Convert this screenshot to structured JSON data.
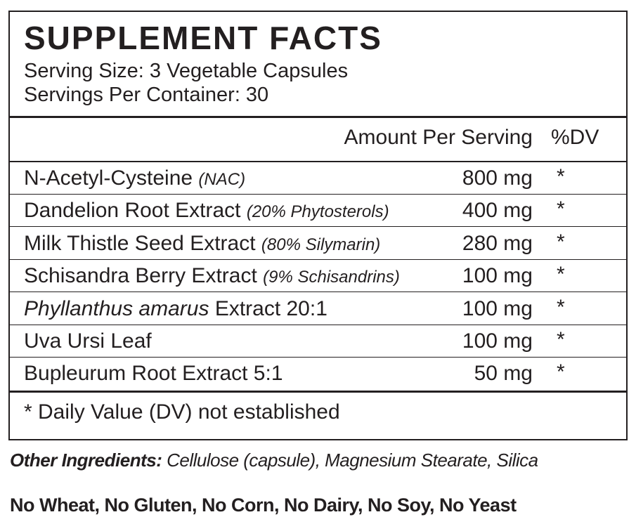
{
  "label": {
    "title": "SUPPLEMENT FACTS",
    "serving_size": "Serving Size: 3 Vegetable Capsules",
    "servings_per_container": "Servings Per Container: 30",
    "header": {
      "amount": "Amount Per Serving",
      "dv": "%DV"
    },
    "rows": [
      {
        "name": "N-Acetyl-Cysteine",
        "note": "(NAC)",
        "amount": "800 mg",
        "dv": "*"
      },
      {
        "name": "Dandelion Root Extract",
        "note": "(20% Phytosterols)",
        "amount": "400 mg",
        "dv": "*"
      },
      {
        "name": "Milk Thistle Seed Extract",
        "note": "(80% Silymarin)",
        "amount": "280 mg",
        "dv": "*"
      },
      {
        "name": "Schisandra Berry Extract",
        "note": "(9% Schisandrins)",
        "amount": "100 mg",
        "dv": "*"
      },
      {
        "name_italic": "Phyllanthus amarus",
        "name": "Extract 20:1",
        "amount": "100 mg",
        "dv": "*"
      },
      {
        "name": "Uva Ursi Leaf",
        "amount": "100 mg",
        "dv": "*"
      },
      {
        "name": "Bupleurum Root Extract 5:1",
        "amount": "50 mg",
        "dv": "*"
      }
    ],
    "footnote": "* Daily Value (DV) not established"
  },
  "other_ingredients": {
    "label": "Other Ingredients:",
    "text": "Cellulose (capsule), Magnesium Stearate, Silica"
  },
  "allergens": "No Wheat, No Gluten, No Corn, No Dairy, No Soy, No Yeast"
}
